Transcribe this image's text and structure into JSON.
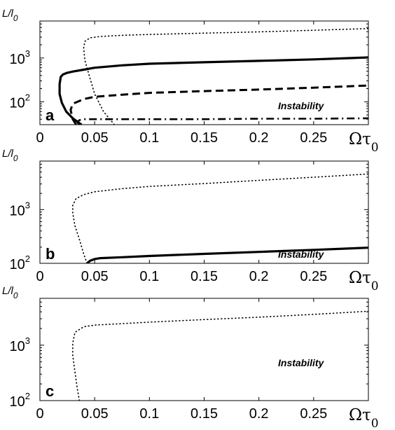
{
  "chart_data": [
    {
      "type": "line",
      "panel_letter": "a",
      "ylabel": "L/l",
      "ylabel_sub": "0",
      "xlabel": "Ωτ",
      "xlabel_sub": "0",
      "xlim": [
        0,
        0.3
      ],
      "ylim": [
        30,
        7000
      ],
      "y_scale": "log",
      "x_ticks": [
        "0",
        "0.05",
        "0.1",
        "0.15",
        "0.2",
        "0.25"
      ],
      "y_tick_labels": [
        {
          "base": "10",
          "exp": "2",
          "value": 100
        },
        {
          "base": "10",
          "exp": "3",
          "value": 1000
        }
      ],
      "annotation": "Instability",
      "series": [
        {
          "style": "solid",
          "x": [
            0.038,
            0.03,
            0.024,
            0.02,
            0.018,
            0.018,
            0.019,
            0.021,
            0.025,
            0.03,
            0.04,
            0.05,
            0.075,
            0.1,
            0.15,
            0.2,
            0.25,
            0.3
          ],
          "y": [
            30,
            42,
            60,
            95,
            150,
            250,
            370,
            420,
            460,
            490,
            540,
            600,
            680,
            740,
            800,
            860,
            930,
            1030
          ]
        },
        {
          "style": "dashed",
          "x": [
            0.033,
            0.03,
            0.028,
            0.03,
            0.04,
            0.05,
            0.075,
            0.1,
            0.15,
            0.2,
            0.25,
            0.3
          ],
          "y": [
            30,
            40,
            65,
            90,
            115,
            130,
            145,
            160,
            175,
            190,
            210,
            235
          ]
        },
        {
          "style": "dashdot",
          "x": [
            0.036,
            0.034,
            0.036,
            0.04,
            0.06,
            0.1,
            0.15,
            0.2,
            0.25,
            0.3
          ],
          "y": [
            30,
            34,
            38,
            40,
            40,
            40,
            40,
            41,
            41,
            42
          ]
        },
        {
          "style": "dotted",
          "x": [
            0.068,
            0.058,
            0.05,
            0.045,
            0.041,
            0.04,
            0.041,
            0.046,
            0.055,
            0.075,
            0.1,
            0.15,
            0.2,
            0.25,
            0.3
          ],
          "y": [
            30,
            60,
            150,
            400,
            900,
            1700,
            2400,
            2900,
            3100,
            3300,
            3450,
            3700,
            3950,
            4300,
            4700
          ]
        }
      ]
    },
    {
      "type": "line",
      "panel_letter": "b",
      "ylabel": "L/l",
      "ylabel_sub": "0",
      "xlabel": "Ωτ",
      "xlabel_sub": "0",
      "xlim": [
        0,
        0.3
      ],
      "ylim": [
        100,
        8000
      ],
      "y_scale": "log",
      "x_ticks": [
        "0",
        "0.05",
        "0.1",
        "0.15",
        "0.2",
        "0.25"
      ],
      "y_tick_labels": [
        {
          "base": "10",
          "exp": "2",
          "value": 100
        },
        {
          "base": "10",
          "exp": "3",
          "value": 1000
        }
      ],
      "annotation": "Instability",
      "series": [
        {
          "style": "solid",
          "x": [
            0.043,
            0.046,
            0.05,
            0.055,
            0.075,
            0.1,
            0.15,
            0.2,
            0.25,
            0.3
          ],
          "y": [
            100,
            112,
            120,
            125,
            130,
            137,
            150,
            163,
            178,
            195
          ]
        },
        {
          "style": "dotted",
          "x": [
            0.043,
            0.04,
            0.036,
            0.032,
            0.03,
            0.03,
            0.033,
            0.04,
            0.05,
            0.075,
            0.1,
            0.15,
            0.2,
            0.25,
            0.3
          ],
          "y": [
            100,
            150,
            280,
            500,
            850,
            1200,
            1600,
            1900,
            2150,
            2450,
            2700,
            3050,
            3500,
            4000,
            4600
          ]
        }
      ]
    },
    {
      "type": "line",
      "panel_letter": "c",
      "ylabel": "L/l",
      "ylabel_sub": "0",
      "xlabel": "Ωτ",
      "xlabel_sub": "0",
      "xlim": [
        0,
        0.3
      ],
      "ylim": [
        100,
        7000
      ],
      "y_scale": "log",
      "x_ticks": [
        "0",
        "0.05",
        "0.1",
        "0.15",
        "0.2",
        "0.25"
      ],
      "y_tick_labels": [
        {
          "base": "10",
          "exp": "2",
          "value": 100
        },
        {
          "base": "10",
          "exp": "3",
          "value": 1000
        }
      ],
      "annotation": "Instability",
      "series": [
        {
          "style": "dotted",
          "x": [
            0.036,
            0.034,
            0.032,
            0.03,
            0.03,
            0.032,
            0.04,
            0.05,
            0.075,
            0.1,
            0.15,
            0.2,
            0.25,
            0.3
          ],
          "y": [
            100,
            170,
            330,
            650,
            1100,
            1700,
            2150,
            2300,
            2450,
            2600,
            2900,
            3200,
            3600,
            4100
          ]
        }
      ]
    }
  ]
}
